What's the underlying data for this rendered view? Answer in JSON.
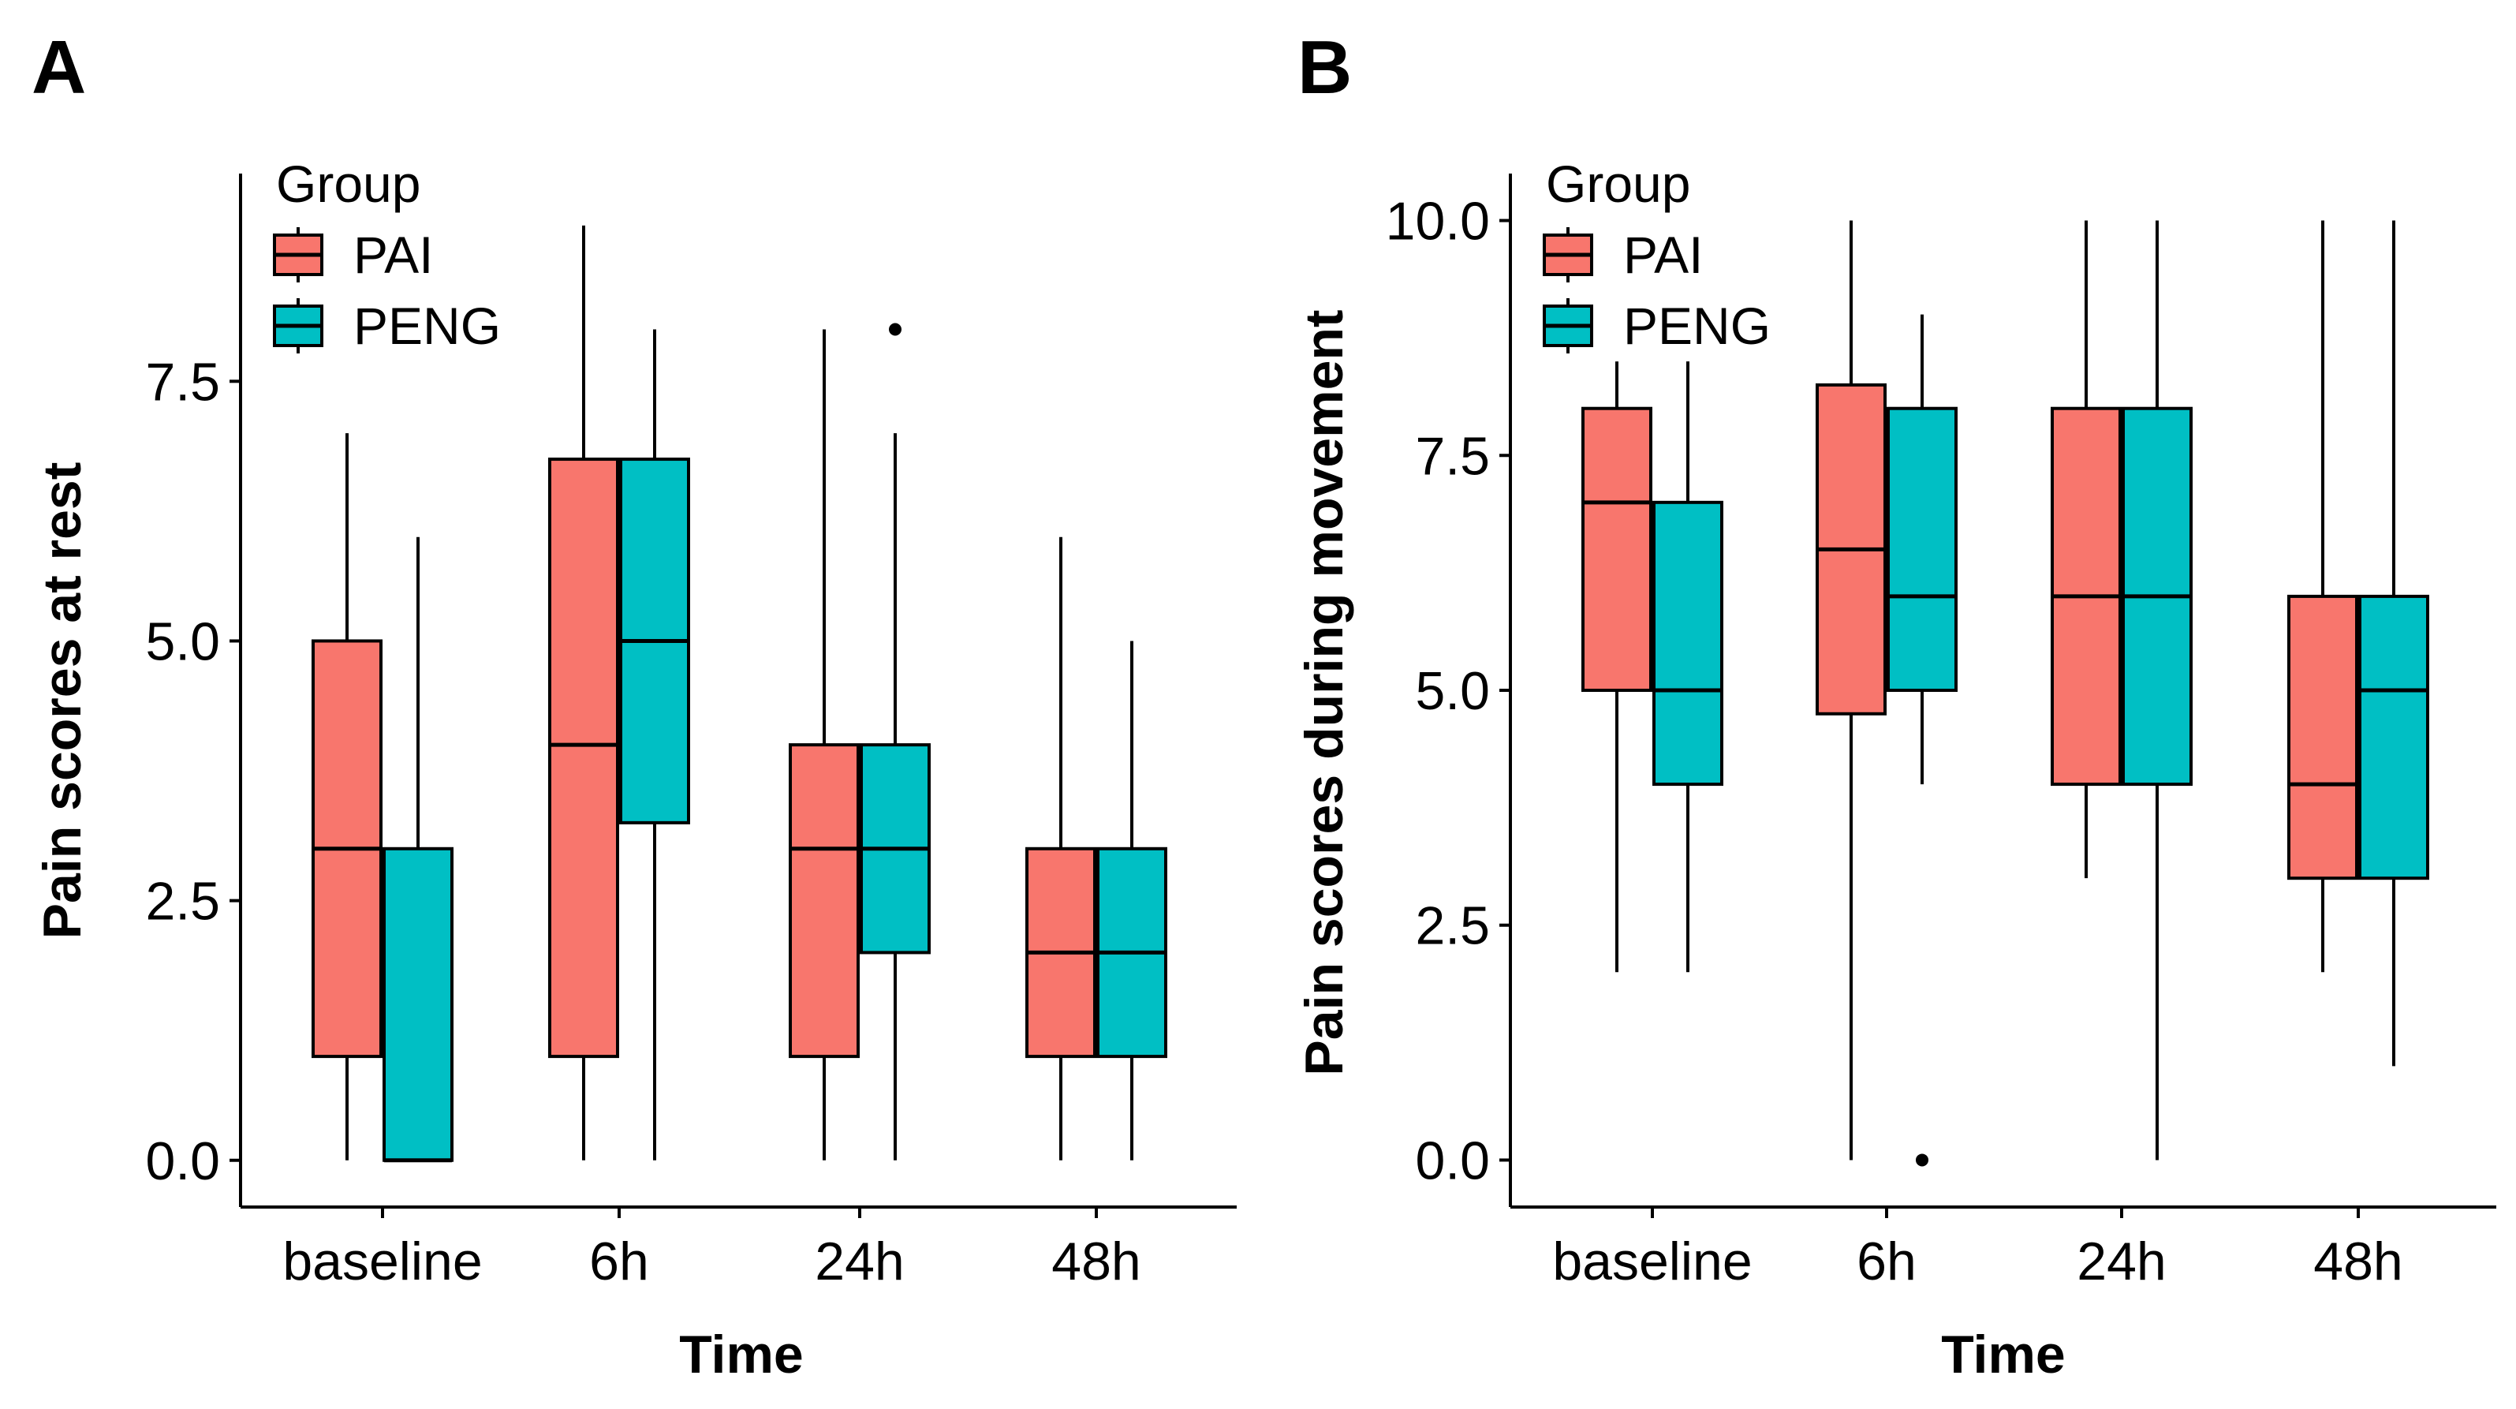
{
  "chart_data": [
    {
      "type": "boxplot",
      "panel_label": "A",
      "xlabel": "Time",
      "ylabel": "Pain scores at rest",
      "categories": [
        "baseline",
        "6h",
        "24h",
        "48h"
      ],
      "ylim": [
        -0.45,
        9.5
      ],
      "yticks": [
        0.0,
        2.5,
        5.0,
        7.5
      ],
      "ytick_labels": [
        "0.0",
        "2.5",
        "5.0",
        "7.5"
      ],
      "legend": {
        "title": "Group",
        "position": "top-left",
        "entries": [
          "PAI",
          "PENG"
        ]
      },
      "series": [
        {
          "name": "PAI",
          "color": "#F8766D",
          "boxes": [
            {
              "min": 0,
              "q1": 1,
              "median": 3,
              "q3": 5,
              "max": 7,
              "outliers": []
            },
            {
              "min": 0,
              "q1": 1,
              "median": 4,
              "q3": 6.75,
              "max": 9,
              "outliers": []
            },
            {
              "min": 0,
              "q1": 1,
              "median": 3,
              "q3": 4,
              "max": 8,
              "outliers": []
            },
            {
              "min": 0,
              "q1": 1,
              "median": 2,
              "q3": 3,
              "max": 6,
              "outliers": []
            }
          ]
        },
        {
          "name": "PENG",
          "color": "#00BFC4",
          "boxes": [
            {
              "min": 0,
              "q1": 0,
              "median": 0,
              "q3": 3,
              "max": 6,
              "outliers": []
            },
            {
              "min": 0,
              "q1": 3.25,
              "median": 5,
              "q3": 6.75,
              "max": 8,
              "outliers": []
            },
            {
              "min": 0,
              "q1": 2,
              "median": 3,
              "q3": 4,
              "max": 7,
              "outliers": [
                8
              ]
            },
            {
              "min": 0,
              "q1": 1,
              "median": 2,
              "q3": 3,
              "max": 5,
              "outliers": []
            }
          ]
        }
      ]
    },
    {
      "type": "boxplot",
      "panel_label": "B",
      "xlabel": "Time",
      "ylabel": "Pain scores during movement",
      "categories": [
        "baseline",
        "6h",
        "24h",
        "48h"
      ],
      "ylim": [
        -0.5,
        10.5
      ],
      "yticks": [
        0.0,
        2.5,
        5.0,
        7.5,
        10.0
      ],
      "ytick_labels": [
        "0.0",
        "2.5",
        "5.0",
        "7.5",
        "10.0"
      ],
      "legend": {
        "title": "Group",
        "position": "top-left",
        "entries": [
          "PAI",
          "PENG"
        ]
      },
      "series": [
        {
          "name": "PAI",
          "color": "#F8766D",
          "boxes": [
            {
              "min": 2,
              "q1": 5,
              "median": 7,
              "q3": 8,
              "max": 8.5,
              "outliers": []
            },
            {
              "min": 0,
              "q1": 4.75,
              "median": 6.5,
              "q3": 8.25,
              "max": 10,
              "outliers": []
            },
            {
              "min": 3,
              "q1": 4,
              "median": 6,
              "q3": 8,
              "max": 10,
              "outliers": []
            },
            {
              "min": 2,
              "q1": 3,
              "median": 4,
              "q3": 6,
              "max": 10,
              "outliers": []
            }
          ]
        },
        {
          "name": "PENG",
          "color": "#00BFC4",
          "boxes": [
            {
              "min": 2,
              "q1": 4,
              "median": 5,
              "q3": 7,
              "max": 8.5,
              "outliers": []
            },
            {
              "min": 4,
              "q1": 5,
              "median": 6,
              "q3": 8,
              "max": 9,
              "outliers": [
                0
              ]
            },
            {
              "min": 0,
              "q1": 4,
              "median": 6,
              "q3": 8,
              "max": 10,
              "outliers": []
            },
            {
              "min": 1,
              "q1": 3,
              "median": 5,
              "q3": 6,
              "max": 10,
              "outliers": []
            }
          ]
        }
      ]
    }
  ]
}
